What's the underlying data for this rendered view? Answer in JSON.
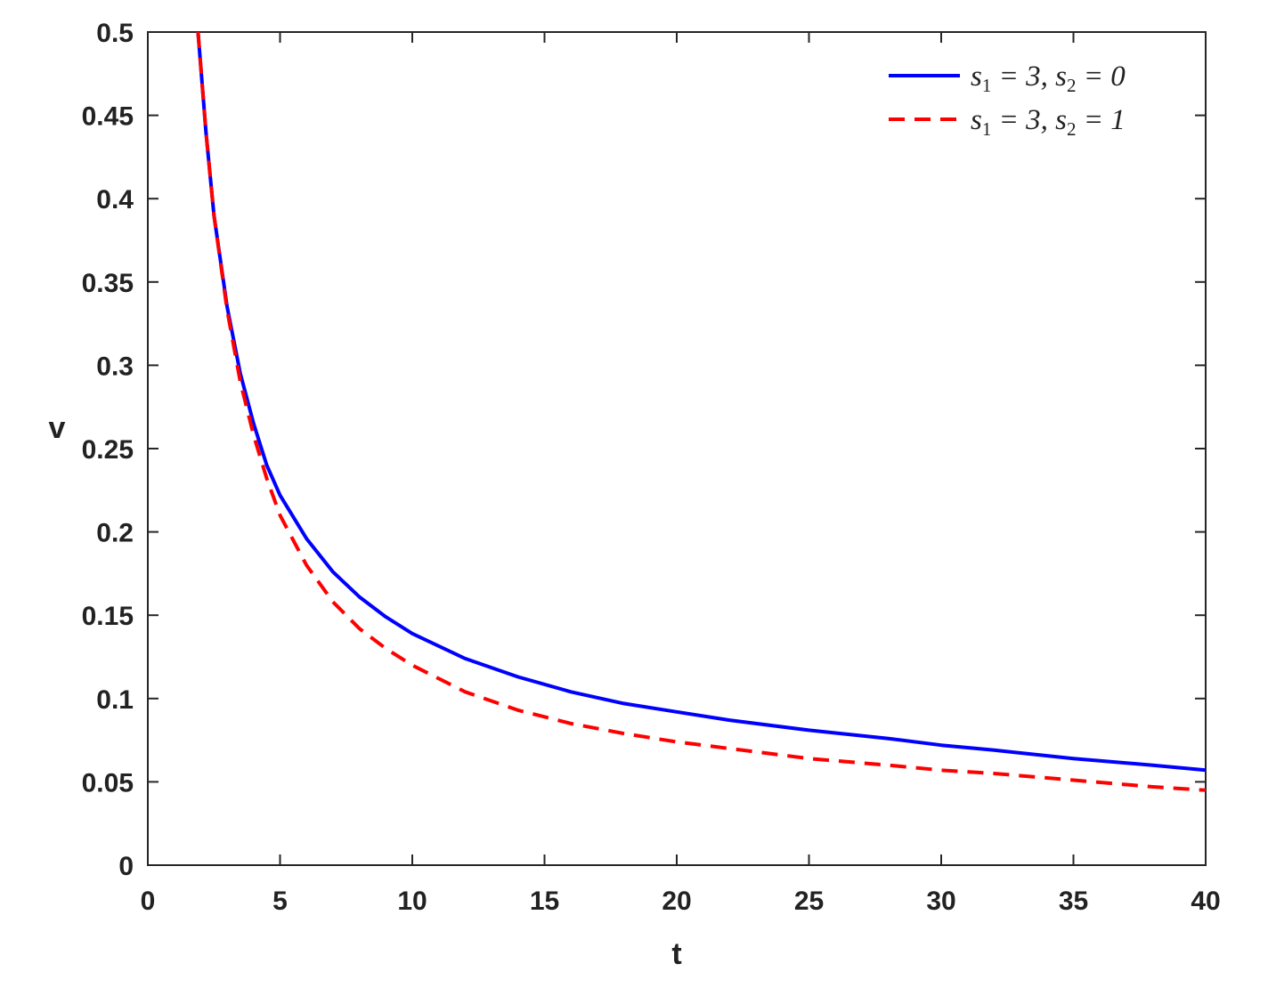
{
  "chart_data": {
    "type": "line",
    "xlabel": "t",
    "ylabel": "v",
    "xlim": [
      0,
      40
    ],
    "ylim": [
      0,
      0.5
    ],
    "xticks": [
      "0",
      "5",
      "10",
      "15",
      "20",
      "25",
      "30",
      "35",
      "40"
    ],
    "yticks": [
      "0",
      "0.05",
      "0.1",
      "0.15",
      "0.2",
      "0.25",
      "0.3",
      "0.35",
      "0.4",
      "0.45",
      "0.5"
    ],
    "grid": false,
    "legend_position": "top-right",
    "series": [
      {
        "name": "s1 = 3, s2 = 0",
        "name_parts": [
          "s",
          "1",
          " = 3, ",
          "s",
          "2",
          " = 0"
        ],
        "color": "#0000ff",
        "style": "solid",
        "x": [
          1.9,
          2.2,
          2.5,
          3,
          3.5,
          4,
          4.5,
          5,
          6,
          7,
          8,
          9,
          10,
          12,
          14,
          16,
          18,
          20,
          22,
          25,
          28,
          30,
          32,
          35,
          38,
          40
        ],
        "y": [
          0.5,
          0.44,
          0.39,
          0.335,
          0.295,
          0.265,
          0.24,
          0.222,
          0.196,
          0.176,
          0.161,
          0.149,
          0.139,
          0.124,
          0.113,
          0.104,
          0.097,
          0.092,
          0.087,
          0.081,
          0.076,
          0.072,
          0.069,
          0.064,
          0.06,
          0.057
        ]
      },
      {
        "name": "s1 = 3, s2 = 1",
        "name_parts": [
          "s",
          "1",
          " = 3, ",
          "s",
          "2",
          " = 1"
        ],
        "color": "#ff0000",
        "style": "dashed",
        "x": [
          1.9,
          2.2,
          2.5,
          3,
          3.5,
          4,
          4.5,
          5,
          6,
          7,
          8,
          9,
          10,
          12,
          14,
          16,
          18,
          20,
          22,
          25,
          28,
          30,
          32,
          35,
          38,
          40
        ],
        "y": [
          0.5,
          0.44,
          0.39,
          0.333,
          0.29,
          0.258,
          0.232,
          0.21,
          0.18,
          0.158,
          0.142,
          0.13,
          0.12,
          0.104,
          0.093,
          0.085,
          0.079,
          0.074,
          0.07,
          0.064,
          0.06,
          0.057,
          0.055,
          0.051,
          0.047,
          0.045
        ]
      }
    ]
  }
}
